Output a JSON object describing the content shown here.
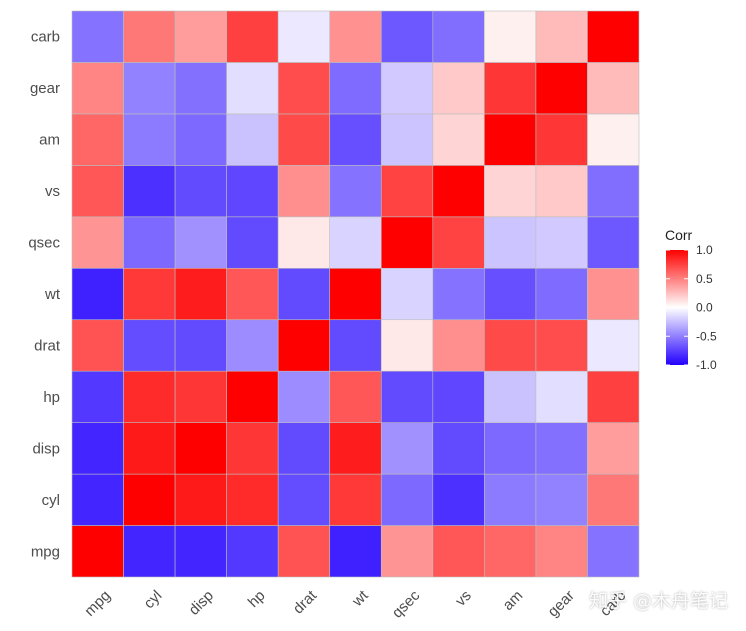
{
  "chart_data": {
    "type": "heatmap",
    "title": "",
    "xlabel": "",
    "ylabel": "",
    "variables": [
      "mpg",
      "cyl",
      "disp",
      "hp",
      "drat",
      "wt",
      "qsec",
      "vs",
      "am",
      "gear",
      "carb"
    ],
    "matrix": [
      [
        1.0,
        -0.85,
        -0.85,
        -0.78,
        0.68,
        -0.87,
        0.42,
        0.66,
        0.6,
        0.48,
        -0.55
      ],
      [
        -0.85,
        1.0,
        0.9,
        0.83,
        -0.7,
        0.78,
        -0.59,
        -0.81,
        -0.52,
        -0.49,
        0.53
      ],
      [
        -0.85,
        0.9,
        1.0,
        0.79,
        -0.71,
        0.89,
        -0.43,
        -0.71,
        -0.59,
        -0.56,
        0.39
      ],
      [
        -0.78,
        0.83,
        0.79,
        1.0,
        -0.45,
        0.66,
        -0.71,
        -0.72,
        -0.24,
        -0.13,
        0.75
      ],
      [
        0.68,
        -0.7,
        -0.71,
        -0.45,
        1.0,
        -0.71,
        0.09,
        0.44,
        0.71,
        0.7,
        -0.09
      ],
      [
        -0.87,
        0.78,
        0.89,
        0.66,
        -0.71,
        1.0,
        -0.17,
        -0.55,
        -0.69,
        -0.58,
        0.43
      ],
      [
        0.42,
        -0.59,
        -0.43,
        -0.71,
        0.09,
        -0.17,
        1.0,
        0.74,
        -0.23,
        -0.21,
        -0.66
      ],
      [
        0.66,
        -0.81,
        -0.71,
        -0.72,
        0.44,
        -0.55,
        0.74,
        1.0,
        0.17,
        0.21,
        -0.57
      ],
      [
        0.6,
        -0.52,
        -0.59,
        -0.24,
        0.71,
        -0.69,
        -0.23,
        0.17,
        1.0,
        0.79,
        0.06
      ],
      [
        0.48,
        -0.49,
        -0.56,
        -0.13,
        0.7,
        -0.58,
        -0.21,
        0.21,
        0.79,
        1.0,
        0.27
      ],
      [
        -0.55,
        0.53,
        0.39,
        0.75,
        -0.09,
        0.43,
        -0.66,
        -0.57,
        0.06,
        0.27,
        1.0
      ]
    ],
    "legend": {
      "title": "Corr",
      "placement": "right",
      "ticks": [
        "1.0",
        "0.5",
        "0.0",
        "-0.5",
        "-1.0"
      ],
      "tick_values": [
        1.0,
        0.5,
        0.0,
        -0.5,
        -1.0
      ],
      "range": [
        -1,
        1
      ]
    },
    "colors": {
      "low": "#2200ff",
      "mid": "#ffffff",
      "high": "#ff0000",
      "border": "#bdbdbd"
    }
  },
  "watermark": "知乎 @木舟笔记"
}
